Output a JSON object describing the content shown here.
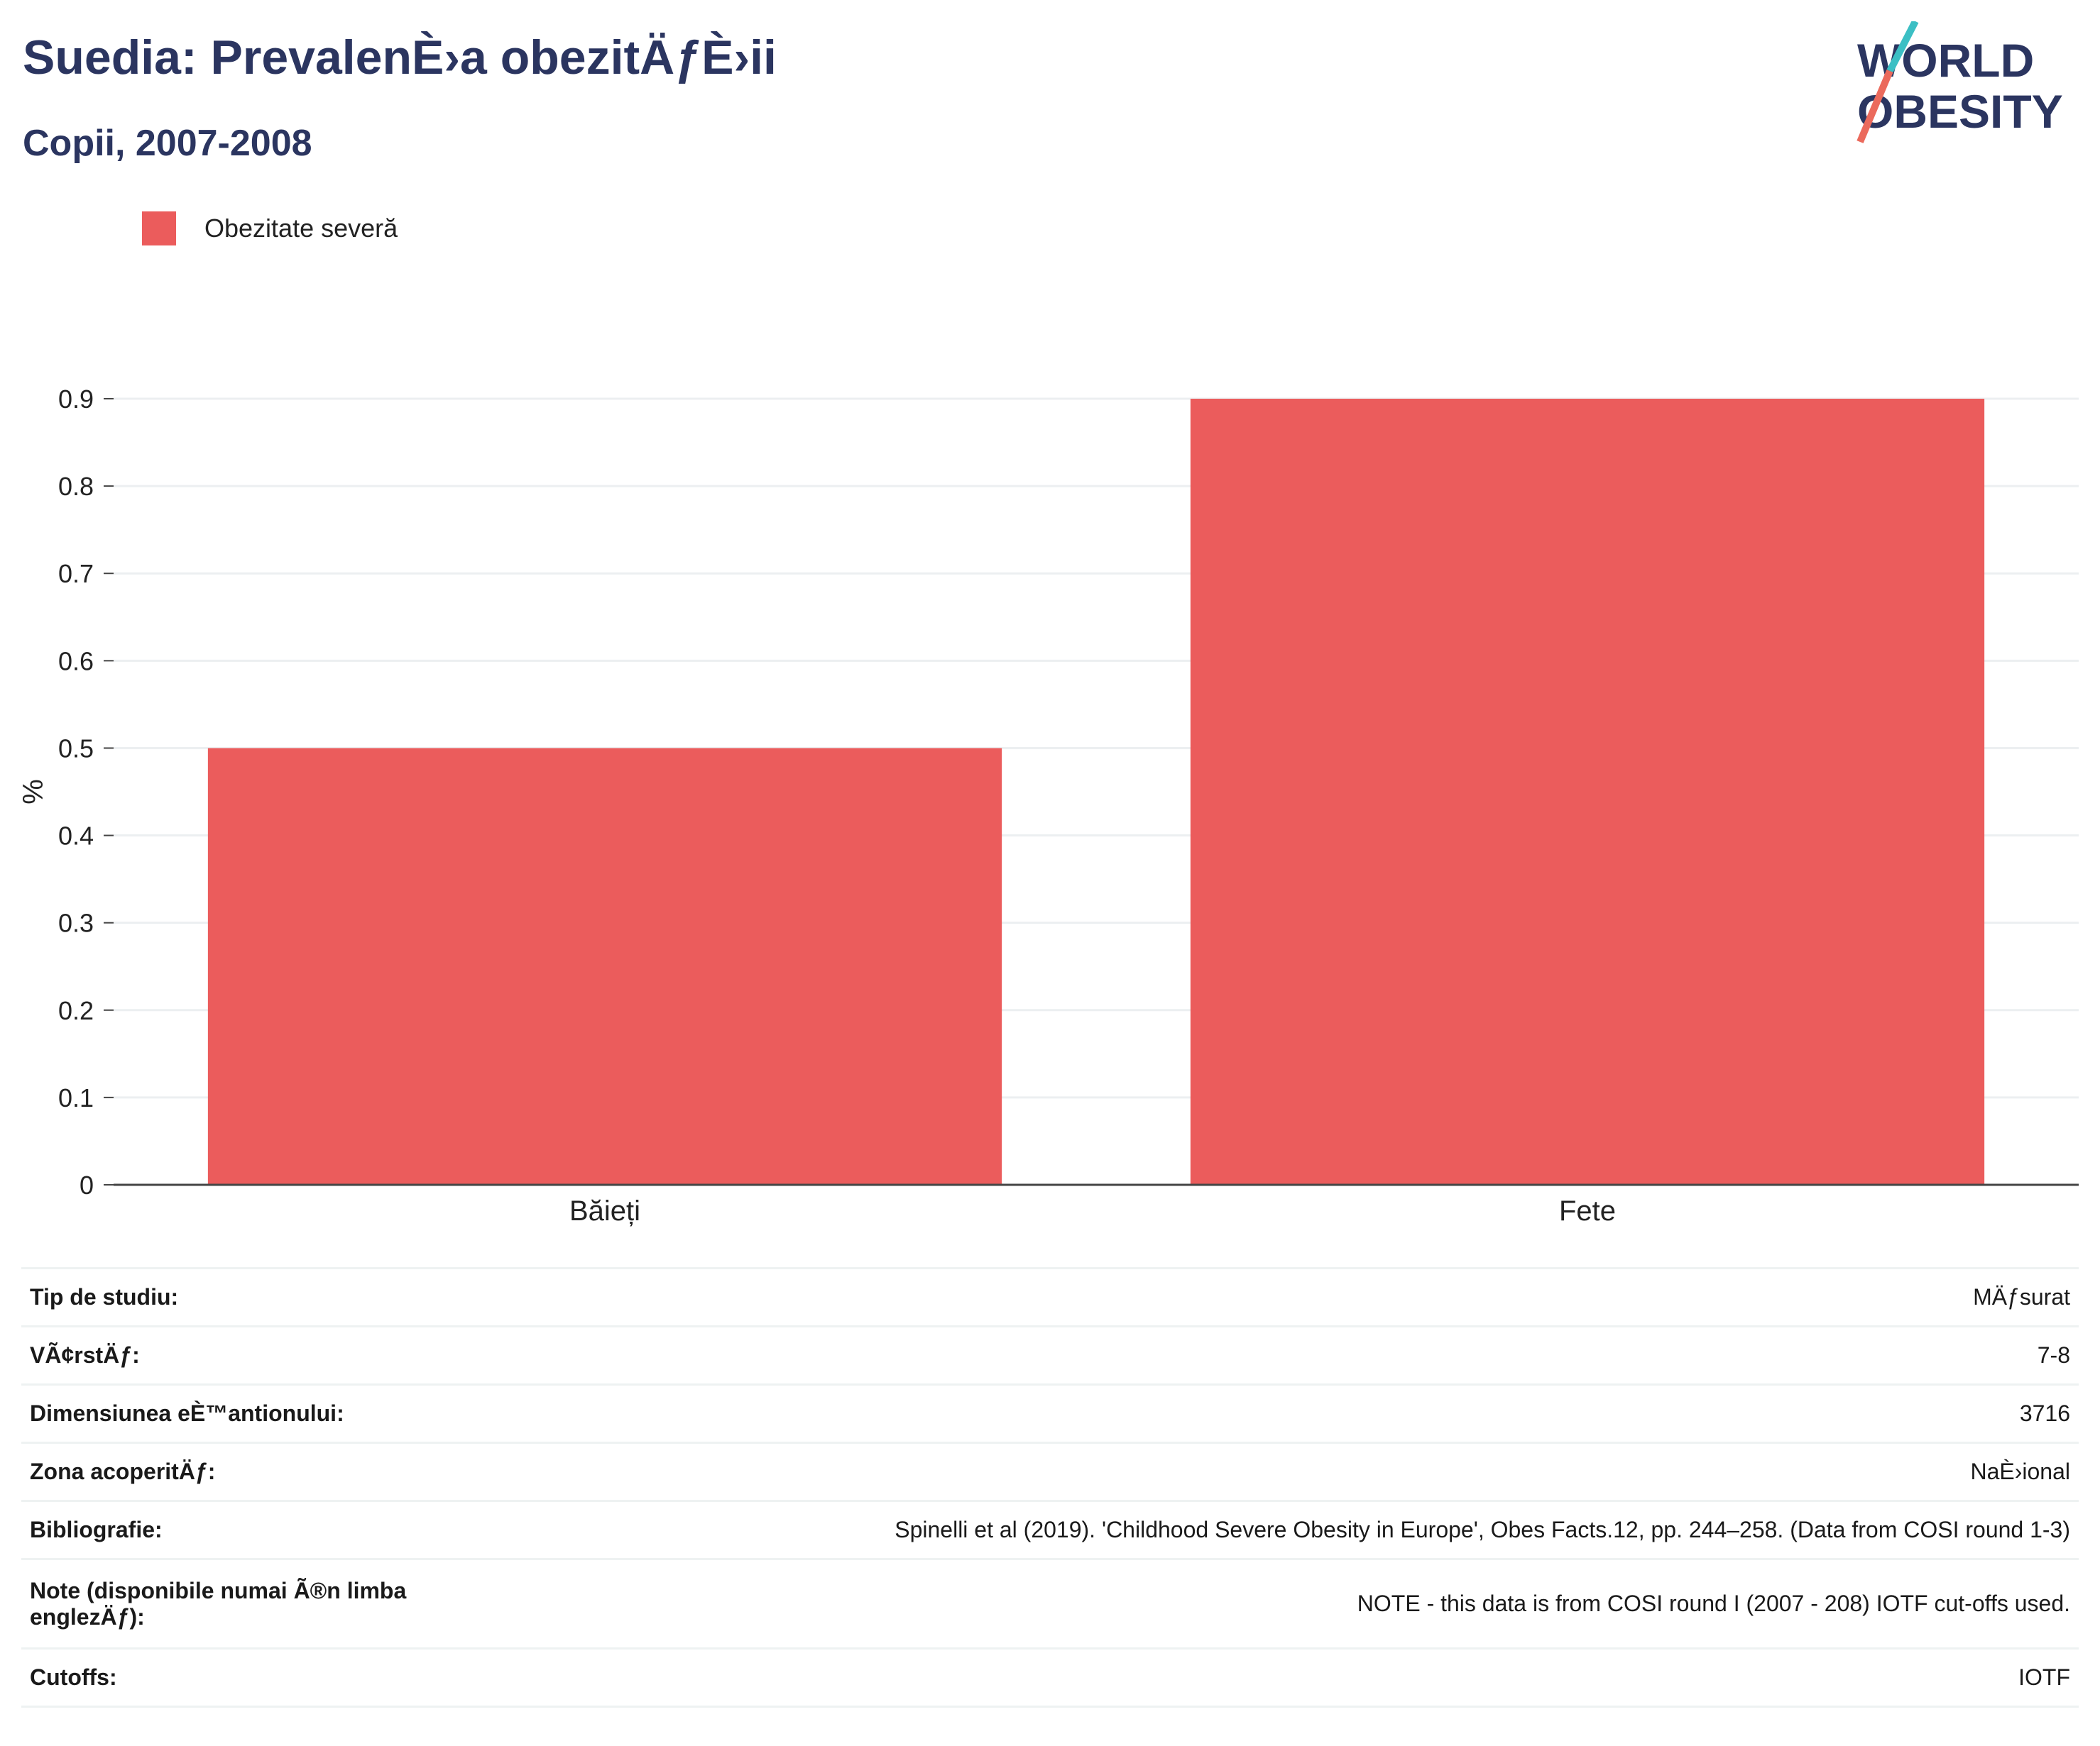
{
  "header": {
    "title": "Suedia: PrevalenÈ›a obezitÄƒÈ›ii",
    "subtitle": "Copii, 2007-2008"
  },
  "logo": {
    "line1": "WORLD",
    "line2": "OBESITY",
    "brand_color": "#2b3560",
    "accent_teal": "#3bbfc4",
    "accent_coral": "#eb6a5c"
  },
  "legend": {
    "label": "Obezitate severă",
    "color": "#eb5c5c"
  },
  "chart_data": {
    "type": "bar",
    "categories": [
      "Băieți",
      "Fete"
    ],
    "series": [
      {
        "name": "Obezitate severă",
        "values": [
          0.5,
          0.9
        ],
        "color": "#eb5c5c"
      }
    ],
    "ylabel": "%",
    "xlabel": "",
    "ylim": [
      0,
      0.9
    ],
    "yticks": [
      0,
      0.1,
      0.2,
      0.3,
      0.4,
      0.5,
      0.6,
      0.7,
      0.8,
      0.9
    ],
    "grid": true,
    "legend_position": "top-left"
  },
  "info": [
    {
      "key": "Tip de studiu:",
      "value": "MÄƒsurat"
    },
    {
      "key": "VÃ¢rstÄƒ:",
      "value": "7-8"
    },
    {
      "key": "Dimensiunea eÈ™antionului:",
      "value": "3716"
    },
    {
      "key": "Zona acoperitÄƒ:",
      "value": "NaÈ›ional"
    },
    {
      "key": "Bibliografie:",
      "value": "Spinelli et al (2019). 'Childhood Severe Obesity in Europe', Obes Facts.12, pp. 244–258. (Data from COSI round 1-3)"
    },
    {
      "key": "Note (disponibile numai Ã®n limba englezÄƒ):",
      "value": "NOTE - this data is from COSI round I (2007 - 208) IOTF cut-offs used."
    },
    {
      "key": "Cutoffs:",
      "value": "IOTF"
    }
  ]
}
